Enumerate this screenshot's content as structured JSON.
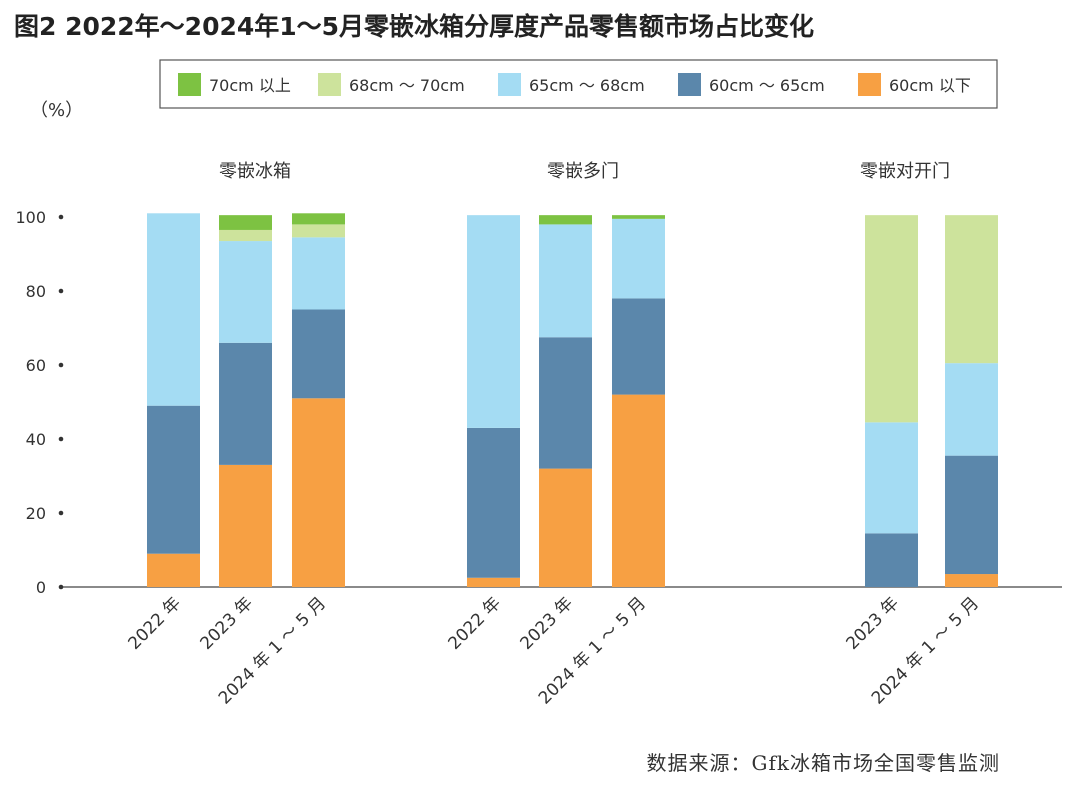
{
  "chart_data": {
    "type": "bar",
    "stacked": true,
    "title": "图2 2022年～2024年1～5月零嵌冰箱分厚度产品零售额市场占比变化",
    "unit_label": "（%）",
    "source": "数据来源：Gfk冰箱市场全国零售监测",
    "ylim": [
      0,
      100
    ],
    "yticks": [
      0,
      20,
      40,
      60,
      80,
      100
    ],
    "grid": false,
    "legend_position": "top",
    "series": [
      {
        "name": "70cm 以上",
        "color": "#7dc242"
      },
      {
        "name": "68cm ～ 70cm",
        "color": "#cde39c"
      },
      {
        "name": "65cm ～ 68cm",
        "color": "#a4dcf3"
      },
      {
        "name": "60cm ～ 65cm",
        "color": "#5b87ab"
      },
      {
        "name": "60cm 以下",
        "color": "#f7a043"
      }
    ],
    "stack_order": [
      "60cm 以下",
      "60cm ～ 65cm",
      "65cm ～ 68cm",
      "68cm ～ 70cm",
      "70cm 以上"
    ],
    "groups": [
      {
        "name": "零嵌冰箱",
        "bars": [
          {
            "category": "2022 年",
            "values": {
              "60cm 以下": 9,
              "60cm ～ 65cm": 40,
              "65cm ～ 68cm": 52,
              "68cm ～ 70cm": 0,
              "70cm 以上": 0
            }
          },
          {
            "category": "2023 年",
            "values": {
              "60cm 以下": 33,
              "60cm ～ 65cm": 33,
              "65cm ～ 68cm": 27.5,
              "68cm ～ 70cm": 3,
              "70cm 以上": 4
            }
          },
          {
            "category": "2024 年 1 ～ 5 月",
            "values": {
              "60cm 以下": 51,
              "60cm ～ 65cm": 24,
              "65cm ～ 68cm": 19.5,
              "68cm ～ 70cm": 3.5,
              "70cm 以上": 3
            }
          }
        ]
      },
      {
        "name": "零嵌多门",
        "bars": [
          {
            "category": "2022 年",
            "values": {
              "60cm 以下": 2.5,
              "60cm ～ 65cm": 40.5,
              "65cm ～ 68cm": 57.5,
              "68cm ～ 70cm": 0,
              "70cm 以上": 0
            }
          },
          {
            "category": "2023 年",
            "values": {
              "60cm 以下": 32,
              "60cm ～ 65cm": 35.5,
              "65cm ～ 68cm": 30.5,
              "68cm ～ 70cm": 0,
              "70cm 以上": 2.5
            }
          },
          {
            "category": "2024 年 1 ～ 5 月",
            "values": {
              "60cm 以下": 52,
              "60cm ～ 65cm": 26,
              "65cm ～ 68cm": 21.5,
              "68cm ～ 70cm": 0,
              "70cm 以上": 1
            }
          }
        ]
      },
      {
        "name": "零嵌对开门",
        "bars": [
          {
            "category": "2023 年",
            "values": {
              "60cm 以下": 0,
              "60cm ～ 65cm": 14.5,
              "65cm ～ 68cm": 30,
              "68cm ～ 70cm": 56,
              "70cm 以上": 0
            }
          },
          {
            "category": "2024 年 1 ～ 5 月",
            "values": {
              "60cm 以下": 3.5,
              "60cm ～ 65cm": 32,
              "65cm ～ 68cm": 25,
              "68cm ～ 70cm": 40,
              "70cm 以上": 0
            }
          }
        ]
      }
    ]
  }
}
